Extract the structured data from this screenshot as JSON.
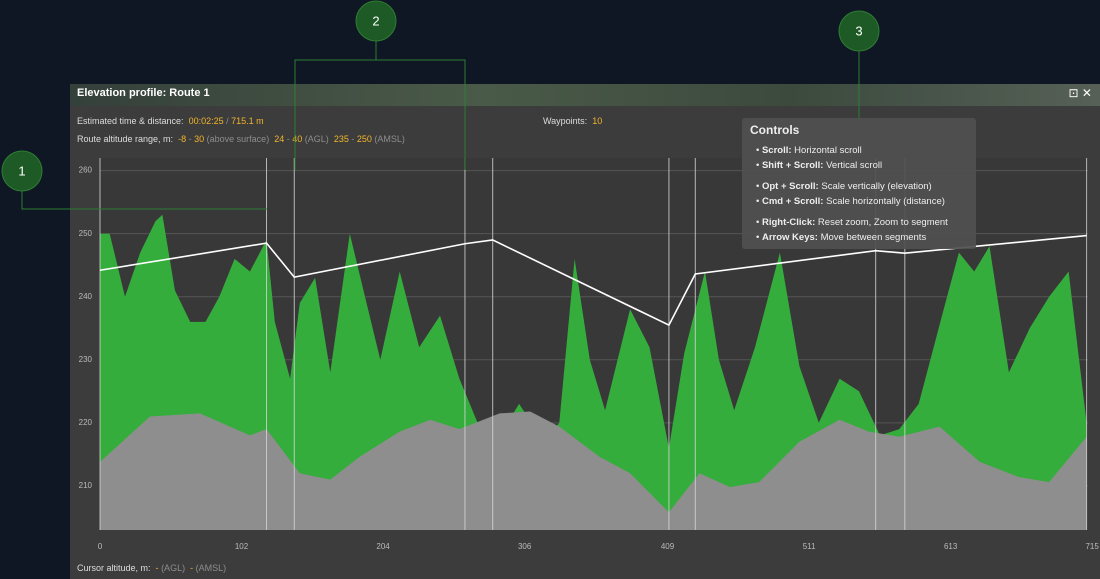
{
  "annotations": [
    "1",
    "2",
    "3"
  ],
  "panel": {
    "title": "Elevation profile: Route 1",
    "time_label": "Estimated time & distance:",
    "time": "00:02:25",
    "separator": "/",
    "distance": "715.1 m",
    "waypoints_label": "Waypoints:",
    "waypoints": 10,
    "range_label": "Route altitude range, m:",
    "range_separator": "-",
    "ranges": [
      {
        "min": -8,
        "max": 30,
        "unit": "(above surface)"
      },
      {
        "min": 24,
        "max": 40,
        "unit": "(AGL)"
      },
      {
        "min": 235,
        "max": 250,
        "unit": "(AMSL)"
      }
    ],
    "cursor_label": "Cursor altitude, m:",
    "cursor": [
      {
        "value": "-",
        "unit": "(AGL)"
      },
      {
        "value": "-",
        "unit": "(AMSL)"
      }
    ]
  },
  "controls": {
    "title": "Controls",
    "groups": [
      [
        {
          "key": "Scroll:",
          "desc": "Horizontal scroll"
        },
        {
          "key": "Shift + Scroll:",
          "desc": "Vertical scroll"
        }
      ],
      [
        {
          "key": "Opt + Scroll:",
          "desc": "Scale vertically (elevation)"
        },
        {
          "key": "Cmd + Scroll:",
          "desc": "Scale horizontally (distance)"
        }
      ],
      [
        {
          "key": "Right-Click:",
          "desc": "Reset zoom, Zoom to segment"
        },
        {
          "key": "Arrow Keys:",
          "desc": "Move between segments"
        }
      ]
    ]
  },
  "chart_data": {
    "type": "area",
    "xlim": [
      0,
      712
    ],
    "ylim": [
      203,
      262
    ],
    "xticks": [
      0,
      102,
      204,
      306,
      409,
      511,
      613,
      715
    ],
    "yticks": [
      210,
      220,
      230,
      240,
      250,
      260
    ],
    "grid": true,
    "vegetation": {
      "color": "#35ad3c",
      "x": [
        0,
        7,
        18,
        29,
        40,
        45,
        54,
        65,
        76,
        86,
        97,
        108,
        120,
        126,
        137,
        144,
        155,
        166,
        180,
        191,
        202,
        216,
        230,
        245,
        259,
        274,
        288,
        302,
        320,
        331,
        342,
        353,
        364,
        382,
        396,
        410,
        421,
        436,
        446,
        457,
        472,
        490,
        504,
        518,
        533,
        547,
        562,
        576,
        590,
        608,
        619,
        630,
        641,
        655,
        670,
        684,
        698,
        711
      ],
      "values": [
        250,
        250,
        240,
        247,
        252,
        253,
        241,
        236,
        236,
        240,
        246,
        244,
        249,
        236,
        227,
        239,
        243,
        228,
        250,
        240,
        230,
        244,
        232,
        237,
        227,
        219,
        218,
        223,
        217,
        220,
        246,
        230,
        222,
        238,
        232,
        216,
        231,
        244,
        230,
        222,
        232,
        247,
        229,
        220,
        227,
        225,
        218,
        219,
        223,
        238,
        247,
        244,
        248,
        228,
        235,
        240,
        244,
        220
      ]
    },
    "ground": {
      "color": "#8e8e8e",
      "x": [
        0,
        36,
        72,
        108,
        120,
        144,
        166,
        187,
        216,
        238,
        259,
        288,
        310,
        331,
        360,
        382,
        410,
        432,
        454,
        475,
        504,
        533,
        554,
        576,
        605,
        634,
        662,
        684,
        711
      ],
      "values": [
        213.8,
        221,
        221.5,
        218,
        219,
        212,
        211,
        214.6,
        218.6,
        220.5,
        219,
        221.5,
        221.8,
        219.4,
        214.6,
        212,
        205.8,
        212,
        209.8,
        210.6,
        217,
        220.5,
        218.6,
        217.8,
        219.4,
        213.8,
        211.4,
        210.6,
        217.8
      ]
    },
    "route": {
      "color": "#ffffff",
      "x": [
        0,
        120,
        140,
        263,
        283,
        410,
        429,
        559,
        580,
        711
      ],
      "values": [
        244.2,
        248.5,
        243.1,
        248.4,
        249.0,
        235.5,
        243.6,
        247.3,
        246.9,
        249.7
      ]
    }
  }
}
